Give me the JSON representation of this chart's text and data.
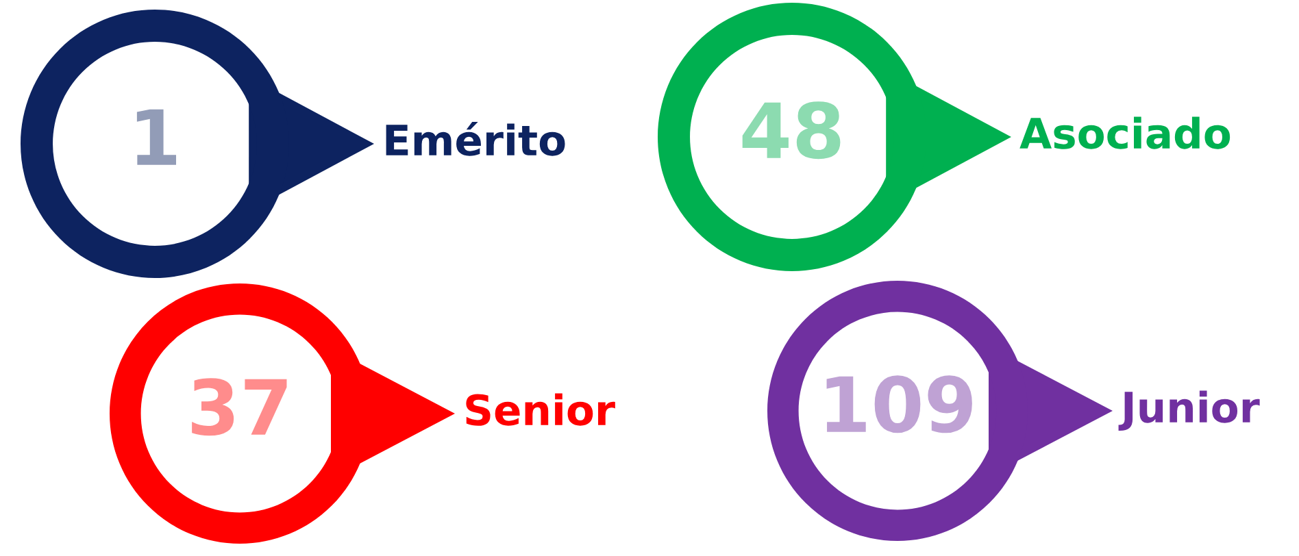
{
  "chart_data": {
    "type": "other",
    "categories": [
      "Emérito",
      "Asociado",
      "Senior",
      "Junior"
    ],
    "values": [
      1,
      48,
      37,
      109
    ],
    "colors": [
      "#0d2360",
      "#00b050",
      "#ff0000",
      "#7030a0"
    ],
    "data_labels": true
  }
}
